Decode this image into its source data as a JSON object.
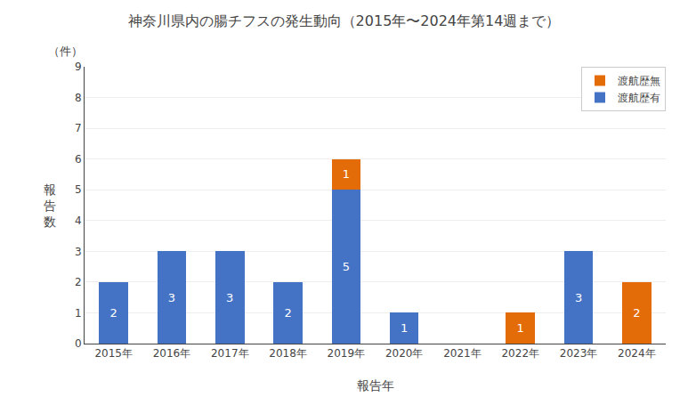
{
  "chart_data": {
    "type": "bar",
    "title": "神奈川県内の腸チフスの発生動向（2015年〜2024年第14週まで）",
    "xlabel": "報告年",
    "ylabel": "報\n告\n数",
    "annotations": [
      "（件）"
    ],
    "categories": [
      "2015年",
      "2016年",
      "2017年",
      "2018年",
      "2019年",
      "2020年",
      "2021年",
      "2022年",
      "2023年",
      "2024年"
    ],
    "series": [
      {
        "name": "渡航歴有",
        "color": "#4472C4",
        "values": [
          2,
          3,
          3,
          2,
          5,
          1,
          0,
          0,
          3,
          0
        ]
      },
      {
        "name": "渡航歴無",
        "color": "#E36C09",
        "values": [
          0,
          0,
          0,
          0,
          1,
          0,
          0,
          1,
          0,
          2
        ]
      }
    ],
    "stacked": true,
    "data_labels": true,
    "ylim": [
      0,
      9
    ],
    "yticks": [
      0,
      1,
      2,
      3,
      4,
      5,
      6,
      7,
      8,
      9
    ],
    "grid": true,
    "legend": "upper right"
  }
}
